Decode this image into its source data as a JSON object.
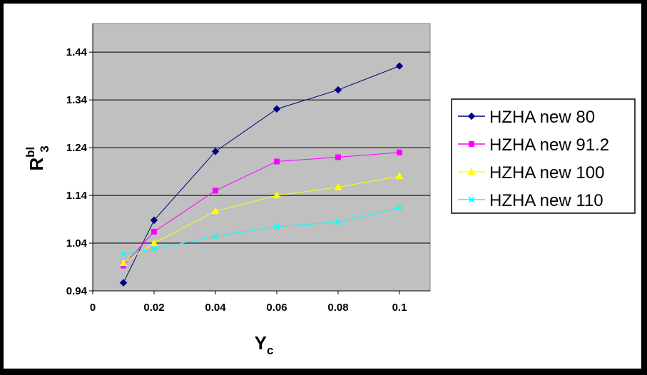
{
  "chart_data": {
    "type": "line",
    "ylabel": {
      "main": "R",
      "sup": "bl",
      "sub": "3"
    },
    "xlabel": {
      "main": "Y",
      "sub": "c"
    },
    "xlim": [
      0,
      0.11
    ],
    "ylim": [
      0.94,
      1.5
    ],
    "xticks": [
      "0",
      "0.02",
      "0.04",
      "0.06",
      "0.08",
      "0.1"
    ],
    "yticks": [
      "0.94",
      "1.04",
      "1.14",
      "1.24",
      "1.34",
      "1.44"
    ],
    "grid": "horizontal",
    "legend_position": "right",
    "x": [
      0.01,
      0.02,
      0.04,
      0.06,
      0.08,
      0.1
    ],
    "series": [
      {
        "name": "HZHA new 80",
        "color": "#000080",
        "marker": "diamond",
        "values": [
          0.957,
          1.088,
          1.232,
          1.321,
          1.361,
          1.411
        ]
      },
      {
        "name": "HZHA new 91.2",
        "color": "#FF00FF",
        "marker": "square",
        "values": [
          0.993,
          1.064,
          1.15,
          1.211,
          1.22,
          1.23
        ]
      },
      {
        "name": "HZHA new 100",
        "color": "#FFFF00",
        "marker": "triangle",
        "values": [
          0.998,
          1.04,
          1.107,
          1.14,
          1.157,
          1.18
        ]
      },
      {
        "name": "HZHA new 110",
        "color": "#00FFFF",
        "marker": "x",
        "values": [
          1.017,
          1.028,
          1.054,
          1.075,
          1.084,
          1.114
        ]
      }
    ]
  }
}
